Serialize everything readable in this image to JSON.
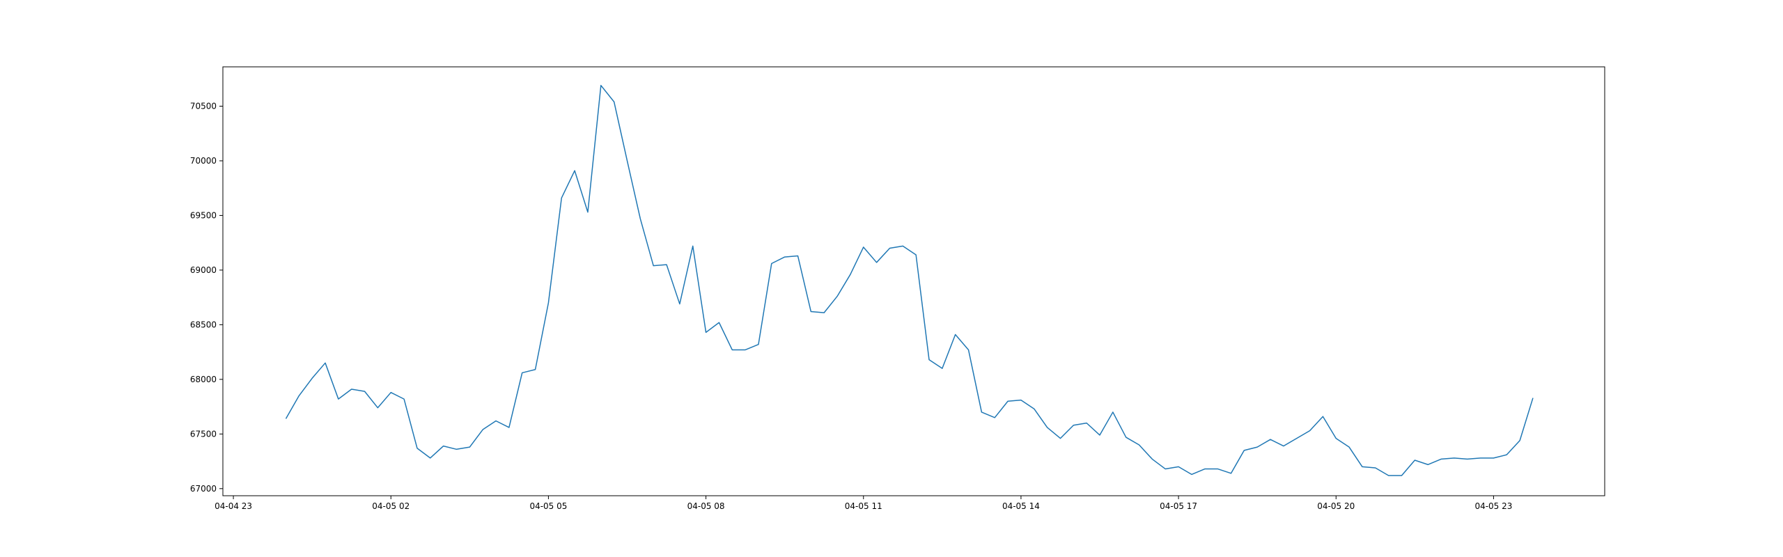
{
  "chart_data": {
    "type": "line",
    "title": "",
    "xlabel": "",
    "ylabel": "",
    "grid": false,
    "legend": "none",
    "line_color": "#1f77b4",
    "x_start": "2024-04-05T00:00",
    "x_step_minutes": 15,
    "xlim": [
      "2024-04-04T22:48",
      "2024-04-06T01:07"
    ],
    "ylim": [
      66935,
      70860
    ],
    "xticks": [
      {
        "at": "2024-04-04T23:00",
        "label": "04-04 23"
      },
      {
        "at": "2024-04-05T02:00",
        "label": "04-05 02"
      },
      {
        "at": "2024-04-05T05:00",
        "label": "04-05 05"
      },
      {
        "at": "2024-04-05T08:00",
        "label": "04-05 08"
      },
      {
        "at": "2024-04-05T11:00",
        "label": "04-05 11"
      },
      {
        "at": "2024-04-05T14:00",
        "label": "04-05 14"
      },
      {
        "at": "2024-04-05T17:00",
        "label": "04-05 17"
      },
      {
        "at": "2024-04-05T20:00",
        "label": "04-05 20"
      },
      {
        "at": "2024-04-05T23:00",
        "label": "04-05 23"
      }
    ],
    "yticks": [
      {
        "value": 67000,
        "label": "67000"
      },
      {
        "value": 67500,
        "label": "67500"
      },
      {
        "value": 68000,
        "label": "68000"
      },
      {
        "value": 68500,
        "label": "68500"
      },
      {
        "value": 69000,
        "label": "69000"
      },
      {
        "value": 69500,
        "label": "69500"
      },
      {
        "value": 70000,
        "label": "70000"
      },
      {
        "value": 70500,
        "label": "70500"
      }
    ],
    "y": [
      67640,
      67850,
      68010,
      68150,
      67820,
      67910,
      67890,
      67740,
      67880,
      67820,
      67370,
      67280,
      67390,
      67360,
      67380,
      67540,
      67620,
      67560,
      68060,
      68090,
      68700,
      69660,
      69910,
      69530,
      70690,
      70540,
      70000,
      69470,
      69040,
      69050,
      68690,
      69220,
      68430,
      68520,
      68270,
      68270,
      68320,
      69060,
      69120,
      69130,
      68620,
      68610,
      68760,
      68960,
      69210,
      69070,
      69200,
      69220,
      69140,
      68180,
      68100,
      68410,
      68270,
      67700,
      67650,
      67800,
      67810,
      67730,
      67560,
      67460,
      67580,
      67600,
      67490,
      67700,
      67470,
      67400,
      67270,
      67180,
      67200,
      67130,
      67180,
      67180,
      67140,
      67350,
      67380,
      67450,
      67390,
      67460,
      67530,
      67660,
      67460,
      67380,
      67200,
      67190,
      67120,
      67120,
      67260,
      67220,
      67270,
      67280,
      67270,
      67280,
      67280,
      67310,
      67440,
      67830
    ]
  }
}
